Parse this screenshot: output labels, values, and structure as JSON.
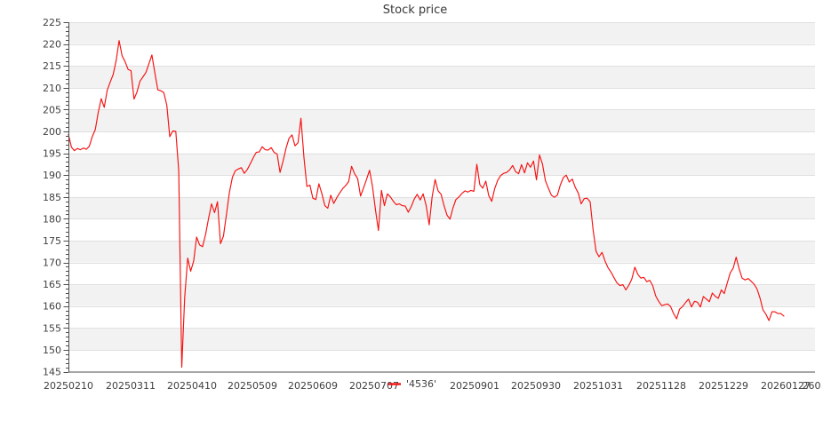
{
  "chart_data": {
    "type": "line",
    "title": "Stock price",
    "xlabel": "",
    "ylabel": "",
    "ylim": [
      145,
      225
    ],
    "y_major_step": 5,
    "y_minor_step": 1,
    "grid": "horizontal-bands",
    "legend_position": "bottom-center",
    "y_tick_labels": [
      "225",
      "220",
      "215",
      "210",
      "205",
      "200",
      "195",
      "190",
      "185",
      "180",
      "175",
      "170",
      "165",
      "160",
      "155",
      "150",
      "145"
    ],
    "x_tick_labels": [
      "20250210",
      "20250311",
      "20250410",
      "20250509",
      "20250609",
      "20250707",
      "20250901",
      "20250930",
      "20251031",
      "20251128",
      "20251229",
      "20260127",
      "260"
    ],
    "colors": {
      "line": "#f61111",
      "band": "#f2f2f2",
      "gridline": "#e0e0e0",
      "axis": "#4d4d4d",
      "tick_text": "#404040",
      "title_text": "#383838",
      "background": "#ffffff"
    },
    "series": [
      {
        "name": "'4536'",
        "color": "#f61111",
        "values": [
          199.3,
          196.4,
          195.6,
          196.1,
          195.8,
          196.2,
          195.9,
          196.6,
          198.8,
          200.4,
          204.3,
          207.5,
          205.5,
          209.4,
          211.3,
          213.0,
          216.2,
          220.8,
          217.3,
          216.0,
          214.2,
          213.9,
          207.4,
          209.0,
          211.5,
          212.5,
          213.5,
          215.5,
          217.5,
          213.3,
          209.5,
          209.3,
          208.9,
          206.0,
          198.8,
          200.1,
          200.0,
          191.0,
          146.0,
          162.0,
          171.0,
          168.0,
          170.3,
          175.8,
          174.0,
          173.6,
          176.4,
          180.0,
          183.4,
          181.4,
          183.9,
          174.3,
          176.0,
          181.0,
          186.0,
          189.5,
          191.0,
          191.4,
          191.7,
          190.4,
          191.3,
          192.6,
          194.0,
          195.2,
          195.3,
          196.5,
          195.8,
          195.7,
          196.3,
          195.2,
          194.8,
          190.6,
          193.2,
          196.2,
          198.4,
          199.2,
          196.7,
          197.4,
          203.0,
          194.0,
          187.4,
          187.7,
          184.7,
          184.4,
          188.0,
          185.8,
          183.0,
          182.4,
          185.4,
          183.5,
          184.8,
          185.9,
          186.9,
          187.6,
          188.5,
          192.0,
          190.3,
          189.2,
          185.2,
          187.1,
          189.0,
          191.1,
          187.4,
          182.0,
          177.3,
          186.5,
          183.0,
          185.7,
          185.0,
          184.0,
          183.2,
          183.4,
          183.0,
          182.9,
          181.5,
          182.8,
          184.5,
          185.6,
          184.3,
          185.7,
          183.0,
          178.6,
          185.0,
          189.0,
          186.4,
          185.6,
          183.0,
          180.8,
          179.9,
          182.5,
          184.4,
          185.0,
          185.8,
          186.4,
          186.1,
          186.5,
          186.3,
          192.5,
          187.8,
          187.0,
          188.6,
          185.3,
          184.0,
          186.9,
          188.8,
          189.9,
          190.4,
          190.6,
          191.2,
          192.2,
          190.8,
          190.3,
          192.4,
          190.5,
          192.8,
          191.8,
          193.2,
          188.9,
          194.6,
          192.6,
          188.7,
          187.0,
          185.4,
          184.9,
          185.4,
          187.7,
          189.4,
          190.0,
          188.4,
          189.1,
          187.2,
          185.9,
          183.4,
          184.6,
          184.7,
          183.9,
          177.5,
          172.5,
          171.3,
          172.3,
          170.3,
          168.8,
          167.8,
          166.5,
          165.3,
          164.7,
          164.9,
          163.7,
          164.8,
          166.2,
          168.9,
          167.3,
          166.4,
          166.6,
          165.6,
          165.9,
          164.7,
          162.3,
          161.1,
          160.1,
          160.3,
          160.5,
          159.9,
          158.3,
          157.1,
          159.3,
          159.9,
          160.8,
          161.6,
          159.8,
          161.1,
          160.9,
          159.8,
          162.2,
          161.6,
          161.0,
          163.0,
          162.2,
          161.8,
          163.7,
          162.9,
          165.3,
          167.6,
          168.7,
          171.2,
          168.5,
          166.4,
          166.0,
          166.3,
          165.7,
          165.0,
          163.9,
          161.8,
          159.1,
          158.1,
          156.7,
          158.7,
          158.7,
          158.3,
          158.3,
          157.7
        ]
      }
    ]
  }
}
